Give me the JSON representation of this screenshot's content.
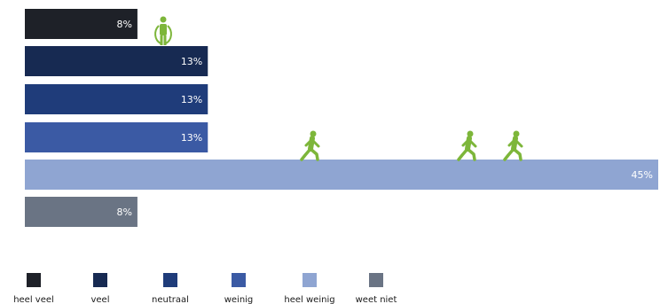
{
  "chart_data": {
    "type": "bar",
    "orientation": "horizontal",
    "categories": [
      "heel veel",
      "veel",
      "neutraal",
      "weinig",
      "heel weinig",
      "weet niet"
    ],
    "values": [
      8,
      13,
      13,
      13,
      45,
      8
    ],
    "value_labels": [
      "8%",
      "13%",
      "13%",
      "13%",
      "45%",
      "8%"
    ],
    "colors": [
      "#1e2128",
      "#172a52",
      "#1f3c7a",
      "#3b5aa4",
      "#8fa5d2",
      "#6a7484"
    ],
    "legend": [
      "heel veel",
      "veel",
      "neutraal",
      "weinig",
      "heel weinig",
      "weet niet"
    ],
    "legend_position": "bottom",
    "xlim": [
      0,
      45
    ],
    "grid": false
  },
  "icons": {
    "standing_icon": "person-standing-icon",
    "walking_icon": "person-walking-icon",
    "icon_color": "#7db63a",
    "standing_on_category": "heel veel",
    "walking_count": 3,
    "walking_on_category": "heel weinig"
  }
}
